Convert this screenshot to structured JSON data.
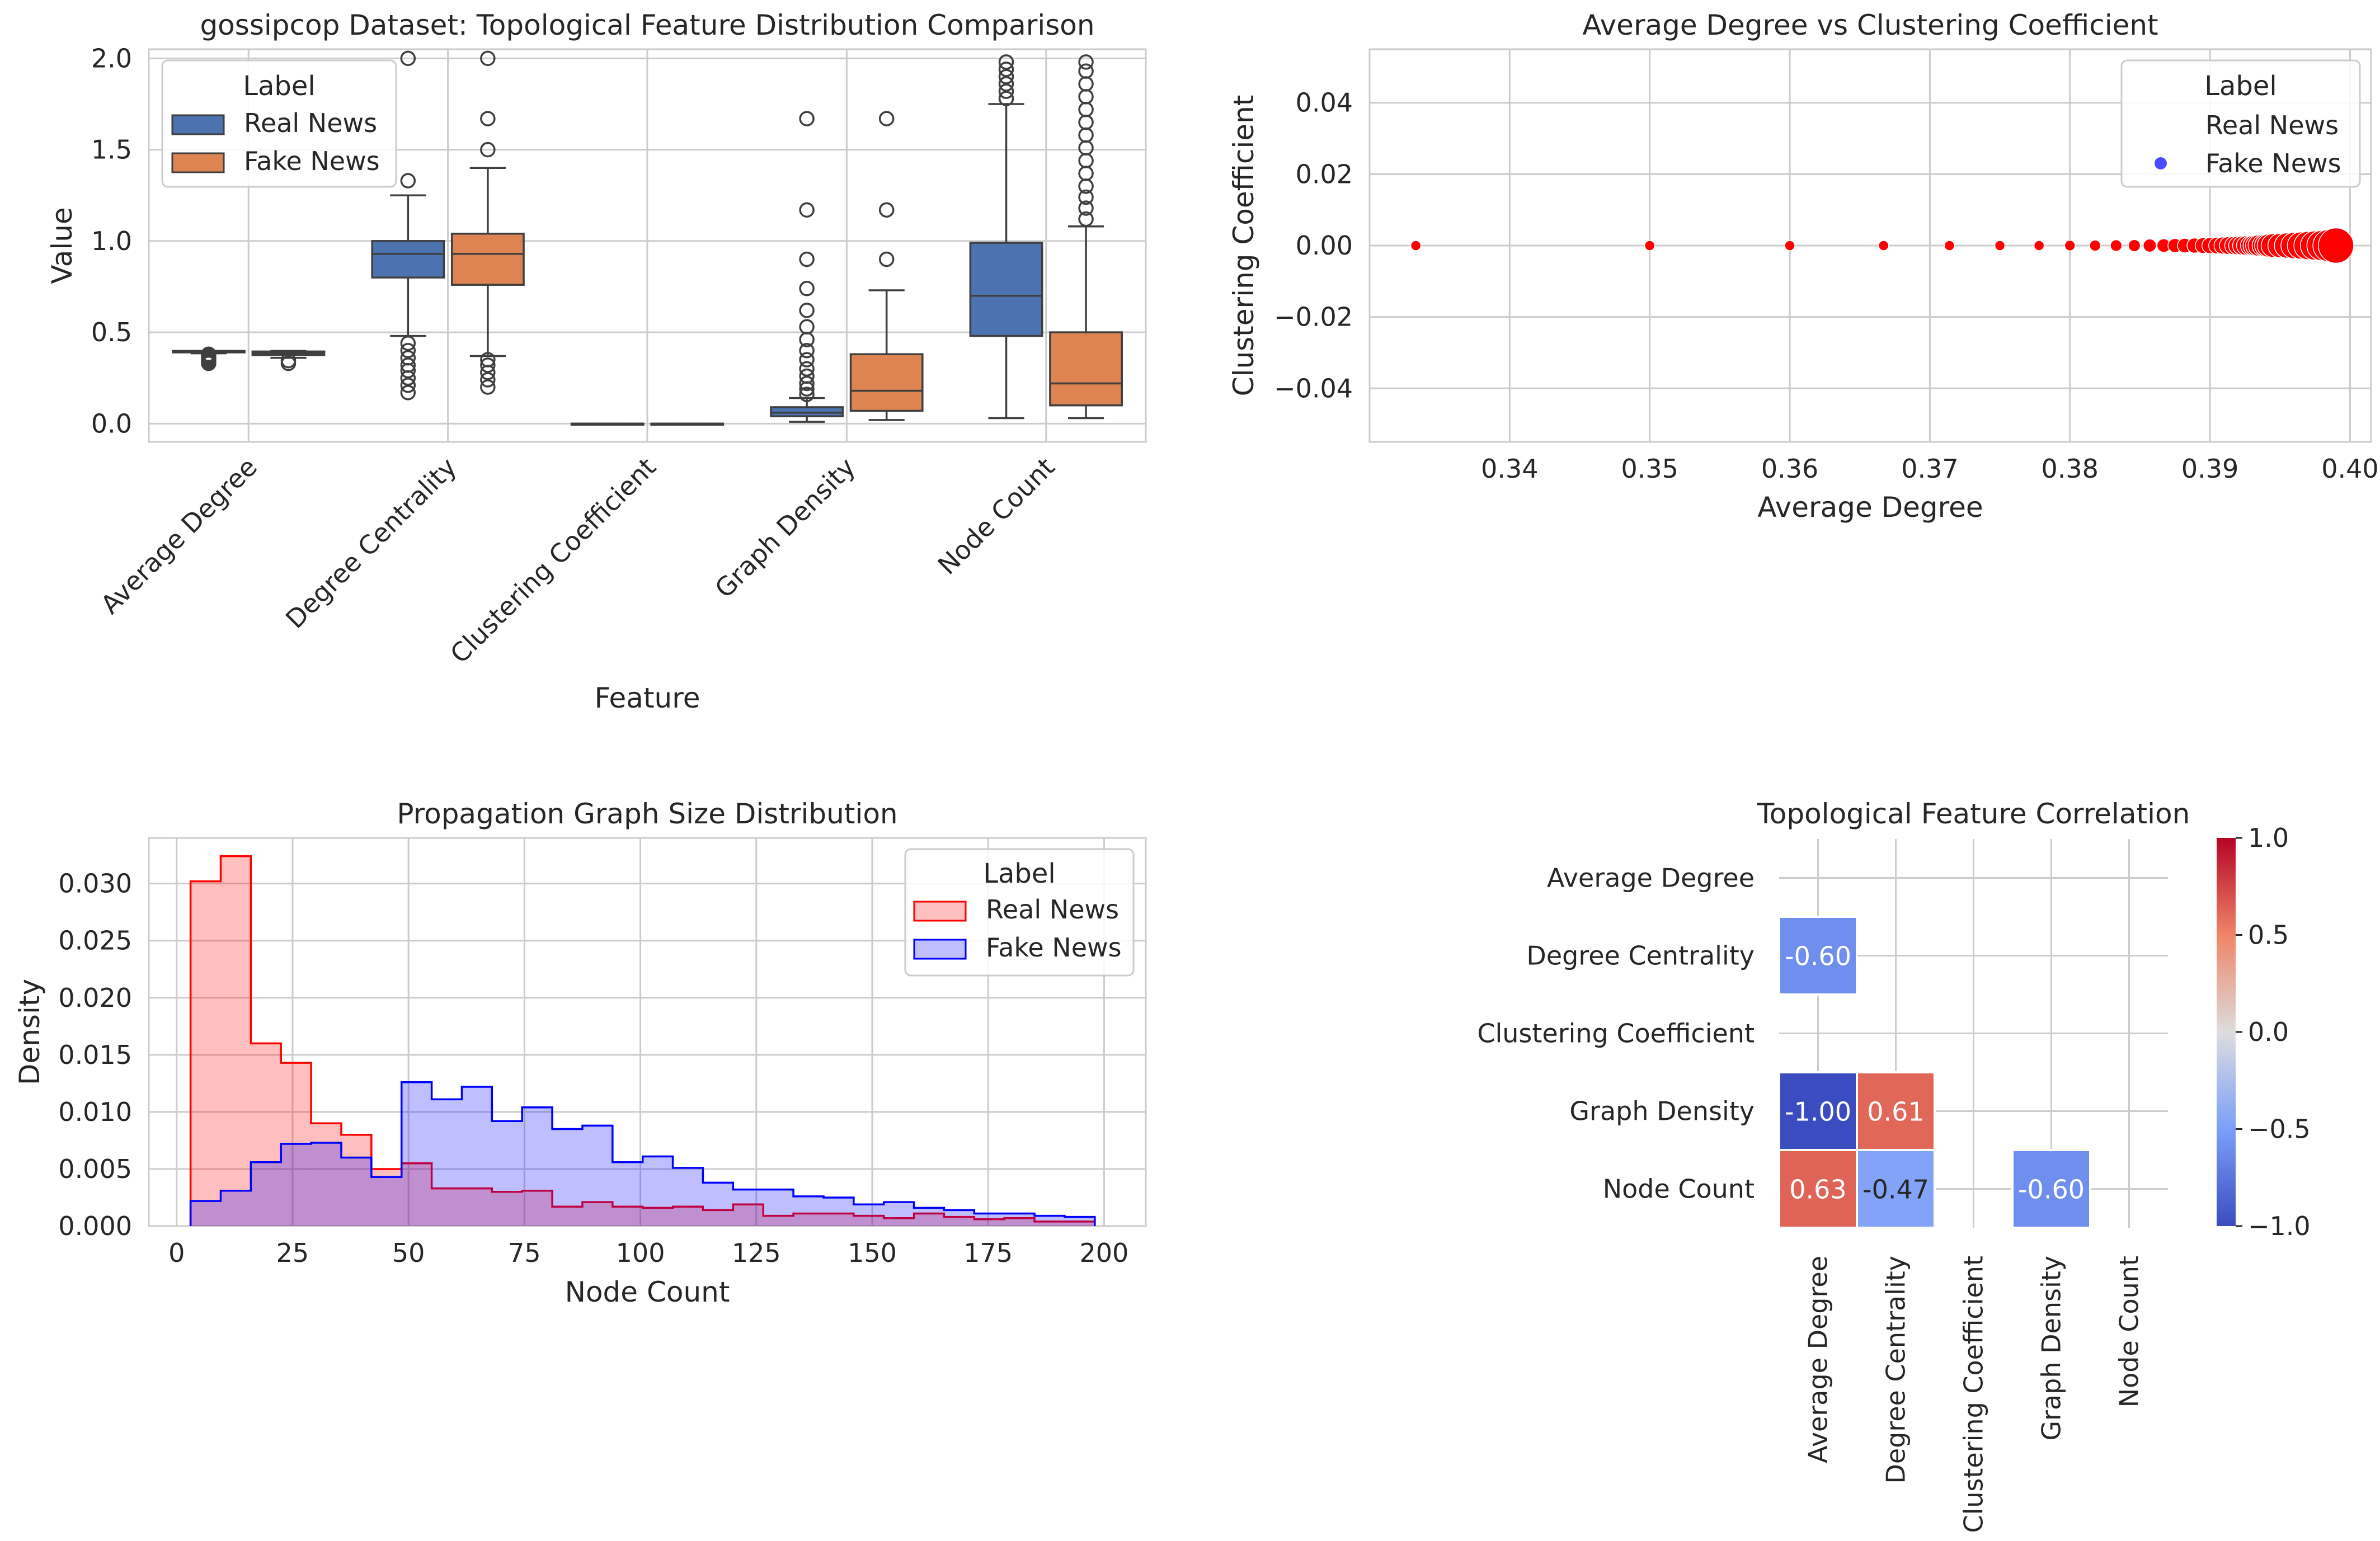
{
  "chart_data": [
    {
      "type": "box",
      "title": "gossipcop Dataset: Topological Feature Distribution Comparison",
      "xlabel": "Feature",
      "ylabel": "Value",
      "ylim": [
        -0.1,
        2.05
      ],
      "yticks": [
        "0.0",
        "0.5",
        "1.0",
        "1.5",
        "2.0"
      ],
      "categories": [
        "Average Degree",
        "Degree Centrality",
        "Clustering Coefficient",
        "Graph Density",
        "Node Count"
      ],
      "legend": {
        "title": "Label",
        "placement": "top-left",
        "entries": [
          "Real News",
          "Fake News"
        ]
      },
      "series": [
        {
          "name": "Real News",
          "color": "#4c72b0",
          "boxes": [
            {
              "q1": 0.39,
              "median": 0.395,
              "q3": 0.398,
              "whislo": 0.385,
              "whishi": 0.398,
              "fliers": [
                0.33,
                0.34,
                0.35,
                0.36,
                0.37,
                0.38
              ]
            },
            {
              "q1": 0.8,
              "median": 0.93,
              "q3": 1.0,
              "whislo": 0.48,
              "whishi": 1.25,
              "fliers": [
                0.17,
                0.21,
                0.25,
                0.29,
                0.32,
                0.36,
                0.4,
                0.44,
                1.33,
                2.0
              ]
            },
            {
              "q1": 0.0,
              "median": 0.0,
              "q3": 0.0,
              "whislo": 0.0,
              "whishi": 0.0,
              "fliers": []
            },
            {
              "q1": 0.04,
              "median": 0.06,
              "q3": 0.09,
              "whislo": 0.01,
              "whishi": 0.14,
              "fliers": [
                0.16,
                0.19,
                0.22,
                0.26,
                0.3,
                0.35,
                0.4,
                0.46,
                0.53,
                0.62,
                0.74,
                0.9,
                1.17,
                1.67
              ]
            },
            {
              "q1": 0.48,
              "median": 0.7,
              "q3": 0.99,
              "whislo": 0.03,
              "whishi": 1.75,
              "fliers": [
                1.78,
                1.82,
                1.86,
                1.9,
                1.94,
                1.98
              ]
            }
          ]
        },
        {
          "name": "Fake News",
          "color": "#dd8452",
          "boxes": [
            {
              "q1": 0.375,
              "median": 0.385,
              "q3": 0.395,
              "whislo": 0.36,
              "whishi": 0.398,
              "fliers": [
                0.33,
                0.345
              ]
            },
            {
              "q1": 0.76,
              "median": 0.93,
              "q3": 1.04,
              "whislo": 0.37,
              "whishi": 1.4,
              "fliers": [
                0.2,
                0.24,
                0.28,
                0.32,
                0.35,
                1.5,
                1.67,
                2.0
              ]
            },
            {
              "q1": 0.0,
              "median": 0.0,
              "q3": 0.0,
              "whislo": 0.0,
              "whishi": 0.0,
              "fliers": []
            },
            {
              "q1": 0.07,
              "median": 0.18,
              "q3": 0.38,
              "whislo": 0.02,
              "whishi": 0.73,
              "fliers": [
                0.9,
                1.17,
                1.67
              ]
            },
            {
              "q1": 0.1,
              "median": 0.22,
              "q3": 0.5,
              "whislo": 0.03,
              "whishi": 1.08,
              "fliers": [
                1.12,
                1.18,
                1.24,
                1.3,
                1.37,
                1.44,
                1.51,
                1.58,
                1.65,
                1.72,
                1.79,
                1.86,
                1.93,
                1.98
              ]
            }
          ]
        }
      ]
    },
    {
      "type": "scatter",
      "title": "Average Degree vs Clustering Coefficient",
      "xlabel": "Average Degree",
      "ylabel": "Clustering Coefficient",
      "xlim": [
        0.33,
        0.4015
      ],
      "ylim": [
        -0.055,
        0.055
      ],
      "xticks": [
        "0.34",
        "0.35",
        "0.36",
        "0.37",
        "0.38",
        "0.39",
        "0.40"
      ],
      "yticks": [
        "−0.04",
        "−0.02",
        "0.00",
        "0.02",
        "0.04"
      ],
      "legend": {
        "title": "Label",
        "placement": "top-right",
        "entries": [
          {
            "name": "Real News",
            "color": "none"
          },
          {
            "name": "Fake News",
            "color": "#4c4cff"
          }
        ]
      },
      "points_color": "#ff0000",
      "points": [
        {
          "x": 0.3333,
          "y": 0.0,
          "size": 1
        },
        {
          "x": 0.35,
          "y": 0.0,
          "size": 1
        },
        {
          "x": 0.36,
          "y": 0.0,
          "size": 1
        },
        {
          "x": 0.3667,
          "y": 0.0,
          "size": 1
        },
        {
          "x": 0.3714,
          "y": 0.0,
          "size": 1
        },
        {
          "x": 0.375,
          "y": 0.0,
          "size": 1
        },
        {
          "x": 0.3778,
          "y": 0.0,
          "size": 1
        },
        {
          "x": 0.38,
          "y": 0.0,
          "size": 1.05
        },
        {
          "x": 0.3818,
          "y": 0.0,
          "size": 1.1
        },
        {
          "x": 0.3833,
          "y": 0.0,
          "size": 1.15
        },
        {
          "x": 0.3846,
          "y": 0.0,
          "size": 1.2
        },
        {
          "x": 0.3857,
          "y": 0.0,
          "size": 1.3
        },
        {
          "x": 0.3867,
          "y": 0.0,
          "size": 1.35
        },
        {
          "x": 0.3875,
          "y": 0.0,
          "size": 1.4
        },
        {
          "x": 0.3882,
          "y": 0.0,
          "size": 1.45
        },
        {
          "x": 0.3889,
          "y": 0.0,
          "size": 1.5
        },
        {
          "x": 0.3895,
          "y": 0.0,
          "size": 1.55
        },
        {
          "x": 0.39,
          "y": 0.0,
          "size": 1.6
        },
        {
          "x": 0.3905,
          "y": 0.0,
          "size": 1.65
        },
        {
          "x": 0.3909,
          "y": 0.0,
          "size": 1.7
        },
        {
          "x": 0.3913,
          "y": 0.0,
          "size": 1.75
        },
        {
          "x": 0.3917,
          "y": 0.0,
          "size": 1.8
        },
        {
          "x": 0.392,
          "y": 0.0,
          "size": 1.85
        },
        {
          "x": 0.3923,
          "y": 0.0,
          "size": 1.9
        },
        {
          "x": 0.3926,
          "y": 0.0,
          "size": 1.95
        },
        {
          "x": 0.3929,
          "y": 0.0,
          "size": 2.0
        },
        {
          "x": 0.3931,
          "y": 0.0,
          "size": 2.05
        },
        {
          "x": 0.3933,
          "y": 0.0,
          "size": 2.1
        },
        {
          "x": 0.3935,
          "y": 0.0,
          "size": 2.15
        },
        {
          "x": 0.3938,
          "y": 0.0,
          "size": 2.2
        },
        {
          "x": 0.394,
          "y": 0.0,
          "size": 2.25
        },
        {
          "x": 0.3942,
          "y": 0.0,
          "size": 2.3
        },
        {
          "x": 0.3945,
          "y": 0.0,
          "size": 2.35
        },
        {
          "x": 0.395,
          "y": 0.0,
          "size": 2.4
        },
        {
          "x": 0.3955,
          "y": 0.0,
          "size": 2.5
        },
        {
          "x": 0.396,
          "y": 0.0,
          "size": 2.6
        },
        {
          "x": 0.3965,
          "y": 0.0,
          "size": 2.7
        },
        {
          "x": 0.397,
          "y": 0.0,
          "size": 2.8
        },
        {
          "x": 0.3975,
          "y": 0.0,
          "size": 2.9
        },
        {
          "x": 0.398,
          "y": 0.0,
          "size": 3.0
        },
        {
          "x": 0.3985,
          "y": 0.0,
          "size": 3.2
        },
        {
          "x": 0.399,
          "y": 0.0,
          "size": 3.5
        }
      ]
    },
    {
      "type": "histogram",
      "title": "Propagation Graph Size Distribution",
      "xlabel": "Node Count",
      "ylabel": "Density",
      "xlim": [
        -6,
        209
      ],
      "ylim": [
        0,
        0.034
      ],
      "xticks": [
        "0",
        "25",
        "50",
        "75",
        "100",
        "125",
        "150",
        "175",
        "200"
      ],
      "yticks": [
        "0.000",
        "0.005",
        "0.010",
        "0.015",
        "0.020",
        "0.025",
        "0.030"
      ],
      "legend": {
        "title": "Label",
        "placement": "top-right",
        "entries": [
          "Real News",
          "Fake News"
        ]
      },
      "bin_edges": [
        3,
        9.5,
        16,
        22.5,
        29,
        35.5,
        42,
        48.5,
        55,
        61.5,
        68,
        74.5,
        81,
        87.5,
        94,
        100.5,
        107,
        113.5,
        120,
        126.5,
        133,
        139.5,
        146,
        152.5,
        159,
        165.5,
        172,
        178.5,
        185,
        191.5,
        198
      ],
      "series": [
        {
          "name": "Real News",
          "color": "#ff0000",
          "values": [
            0.0302,
            0.0324,
            0.016,
            0.0143,
            0.009,
            0.008,
            0.005,
            0.0055,
            0.0033,
            0.0033,
            0.003,
            0.0031,
            0.0017,
            0.0021,
            0.0017,
            0.0016,
            0.0017,
            0.0014,
            0.0019,
            0.0009,
            0.0011,
            0.0011,
            0.0009,
            0.0007,
            0.0011,
            0.0008,
            0.0006,
            0.0007,
            0.0004,
            0.0004
          ]
        },
        {
          "name": "Fake News",
          "color": "#0000ff",
          "values": [
            0.0022,
            0.0031,
            0.0056,
            0.0072,
            0.0073,
            0.006,
            0.0043,
            0.0126,
            0.0111,
            0.0122,
            0.0092,
            0.0104,
            0.0085,
            0.0088,
            0.0056,
            0.0061,
            0.0051,
            0.0038,
            0.0032,
            0.0032,
            0.0026,
            0.0025,
            0.0019,
            0.0021,
            0.0016,
            0.0014,
            0.0011,
            0.0011,
            0.0009,
            0.0008
          ]
        }
      ]
    },
    {
      "type": "heatmap",
      "title": "Topological Feature Correlation",
      "rows": [
        "Average Degree",
        "Degree Centrality",
        "Clustering Coefficient",
        "Graph Density",
        "Node Count"
      ],
      "cols": [
        "Average Degree",
        "Degree Centrality",
        "Clustering Coefficient",
        "Graph Density",
        "Node Count"
      ],
      "mask": "upper-triangle",
      "cells": [
        {
          "row": 1,
          "col": 0,
          "value": -0.6,
          "label": "-0.60"
        },
        {
          "row": 3,
          "col": 0,
          "value": -1.0,
          "label": "-1.00"
        },
        {
          "row": 3,
          "col": 1,
          "value": 0.61,
          "label": "0.61"
        },
        {
          "row": 4,
          "col": 0,
          "value": 0.63,
          "label": "0.63"
        },
        {
          "row": 4,
          "col": 1,
          "value": -0.47,
          "label": "-0.47"
        },
        {
          "row": 4,
          "col": 3,
          "value": -0.6,
          "label": "-0.60"
        }
      ],
      "colorbar": {
        "cmap": "coolwarm",
        "vmin": -1.0,
        "vmax": 1.0,
        "ticks": [
          "1.0",
          "0.5",
          "0.0",
          "−0.5",
          "−1.0"
        ]
      }
    }
  ]
}
